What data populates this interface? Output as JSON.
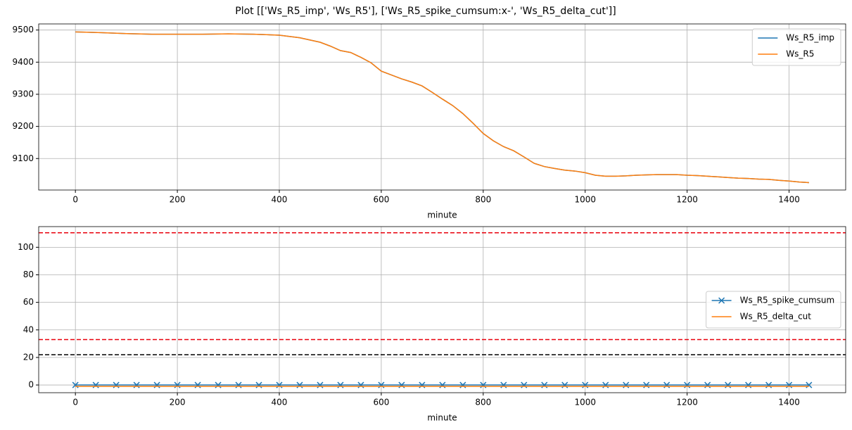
{
  "title": "Plot [['Ws_R5_imp', 'Ws_R5'], ['Ws_R5_spike_cumsum:x-', 'Ws_R5_delta_cut']]",
  "chart_data": [
    {
      "type": "line",
      "xlabel": "minute",
      "grid": true,
      "legend": "upper right",
      "xlim": [
        -72,
        1511
      ],
      "xticks": [
        0,
        200,
        400,
        600,
        800,
        1000,
        1200,
        1400
      ],
      "ylim": [
        9002,
        9519
      ],
      "yticks": [
        9100,
        9200,
        9300,
        9400,
        9500
      ],
      "x": [
        0,
        50,
        100,
        150,
        200,
        250,
        300,
        350,
        400,
        440,
        480,
        500,
        520,
        540,
        560,
        580,
        600,
        620,
        640,
        660,
        680,
        700,
        720,
        740,
        760,
        780,
        800,
        820,
        840,
        860,
        880,
        900,
        920,
        940,
        960,
        980,
        1000,
        1020,
        1040,
        1060,
        1080,
        1100,
        1120,
        1140,
        1160,
        1180,
        1200,
        1220,
        1240,
        1260,
        1280,
        1300,
        1320,
        1340,
        1360,
        1380,
        1400,
        1420,
        1439
      ],
      "series": [
        {
          "name": "Ws_R5_imp",
          "color": "#1f77b4",
          "values": [
            9494,
            9492,
            9489,
            9487,
            9487,
            9487,
            9488,
            9487,
            9484,
            9476,
            9462,
            9450,
            9436,
            9430,
            9415,
            9398,
            9372,
            9360,
            9348,
            9338,
            9326,
            9306,
            9285,
            9265,
            9240,
            9210,
            9178,
            9155,
            9137,
            9124,
            9105,
            9085,
            9075,
            9069,
            9064,
            9061,
            9056,
            9048,
            9045,
            9045,
            9046,
            9048,
            9049,
            9050,
            9050,
            9050,
            9048,
            9047,
            9045,
            9043,
            9041,
            9039,
            9038,
            9036,
            9035,
            9032,
            9030,
            9027,
            9025
          ]
        },
        {
          "name": "Ws_R5",
          "color": "#ff7f0e",
          "values": [
            9494,
            9492,
            9489,
            9487,
            9487,
            9487,
            9488,
            9487,
            9484,
            9476,
            9462,
            9450,
            9436,
            9430,
            9415,
            9398,
            9372,
            9360,
            9348,
            9338,
            9326,
            9306,
            9285,
            9265,
            9240,
            9210,
            9178,
            9155,
            9137,
            9124,
            9105,
            9085,
            9075,
            9069,
            9064,
            9061,
            9056,
            9048,
            9045,
            9045,
            9046,
            9048,
            9049,
            9050,
            9050,
            9050,
            9048,
            9047,
            9045,
            9043,
            9041,
            9039,
            9038,
            9036,
            9035,
            9032,
            9030,
            9027,
            9025
          ]
        }
      ]
    },
    {
      "type": "line",
      "xlabel": "minute",
      "grid": true,
      "legend": "center right",
      "xlim": [
        -72,
        1511
      ],
      "xticks": [
        0,
        200,
        400,
        600,
        800,
        1000,
        1200,
        1400
      ],
      "ylim": [
        -5.6,
        115
      ],
      "yticks": [
        0,
        20,
        40,
        60,
        80,
        100
      ],
      "x": [
        0,
        40,
        80,
        120,
        160,
        200,
        240,
        280,
        320,
        360,
        400,
        440,
        480,
        520,
        560,
        600,
        640,
        680,
        720,
        760,
        800,
        840,
        880,
        920,
        960,
        1000,
        1040,
        1080,
        1120,
        1160,
        1200,
        1240,
        1280,
        1320,
        1360,
        1400,
        1439
      ],
      "series": [
        {
          "name": "Ws_R5_spike_cumsum",
          "color": "#1f77b4",
          "marker": "x",
          "values": [
            0,
            0,
            0,
            0,
            0,
            0,
            0,
            0,
            0,
            0,
            0,
            0,
            0,
            0,
            0,
            0,
            0,
            0,
            0,
            0,
            0,
            0,
            0,
            0,
            0,
            0,
            0,
            0,
            0,
            0,
            0,
            0,
            0,
            0,
            0,
            0,
            0
          ]
        },
        {
          "name": "Ws_R5_delta_cut",
          "color": "#ff7f0e",
          "values": [
            -1,
            -1,
            -1,
            -1,
            -1,
            -1,
            -1,
            -1,
            -1,
            -1,
            -1,
            -1,
            -1,
            -1,
            -1,
            -1,
            -1,
            -1,
            -1,
            -1,
            -1,
            -1,
            -1,
            -1,
            -1,
            -1,
            -1,
            -1,
            -1,
            -1,
            -1,
            -1,
            -1,
            -1,
            -1,
            -1,
            -1
          ]
        }
      ],
      "hlines": [
        {
          "value": 110.5,
          "color": "#e8000b"
        },
        {
          "value": 33,
          "color": "#e8000b"
        },
        {
          "value": 22,
          "color": "#000000"
        }
      ]
    }
  ]
}
